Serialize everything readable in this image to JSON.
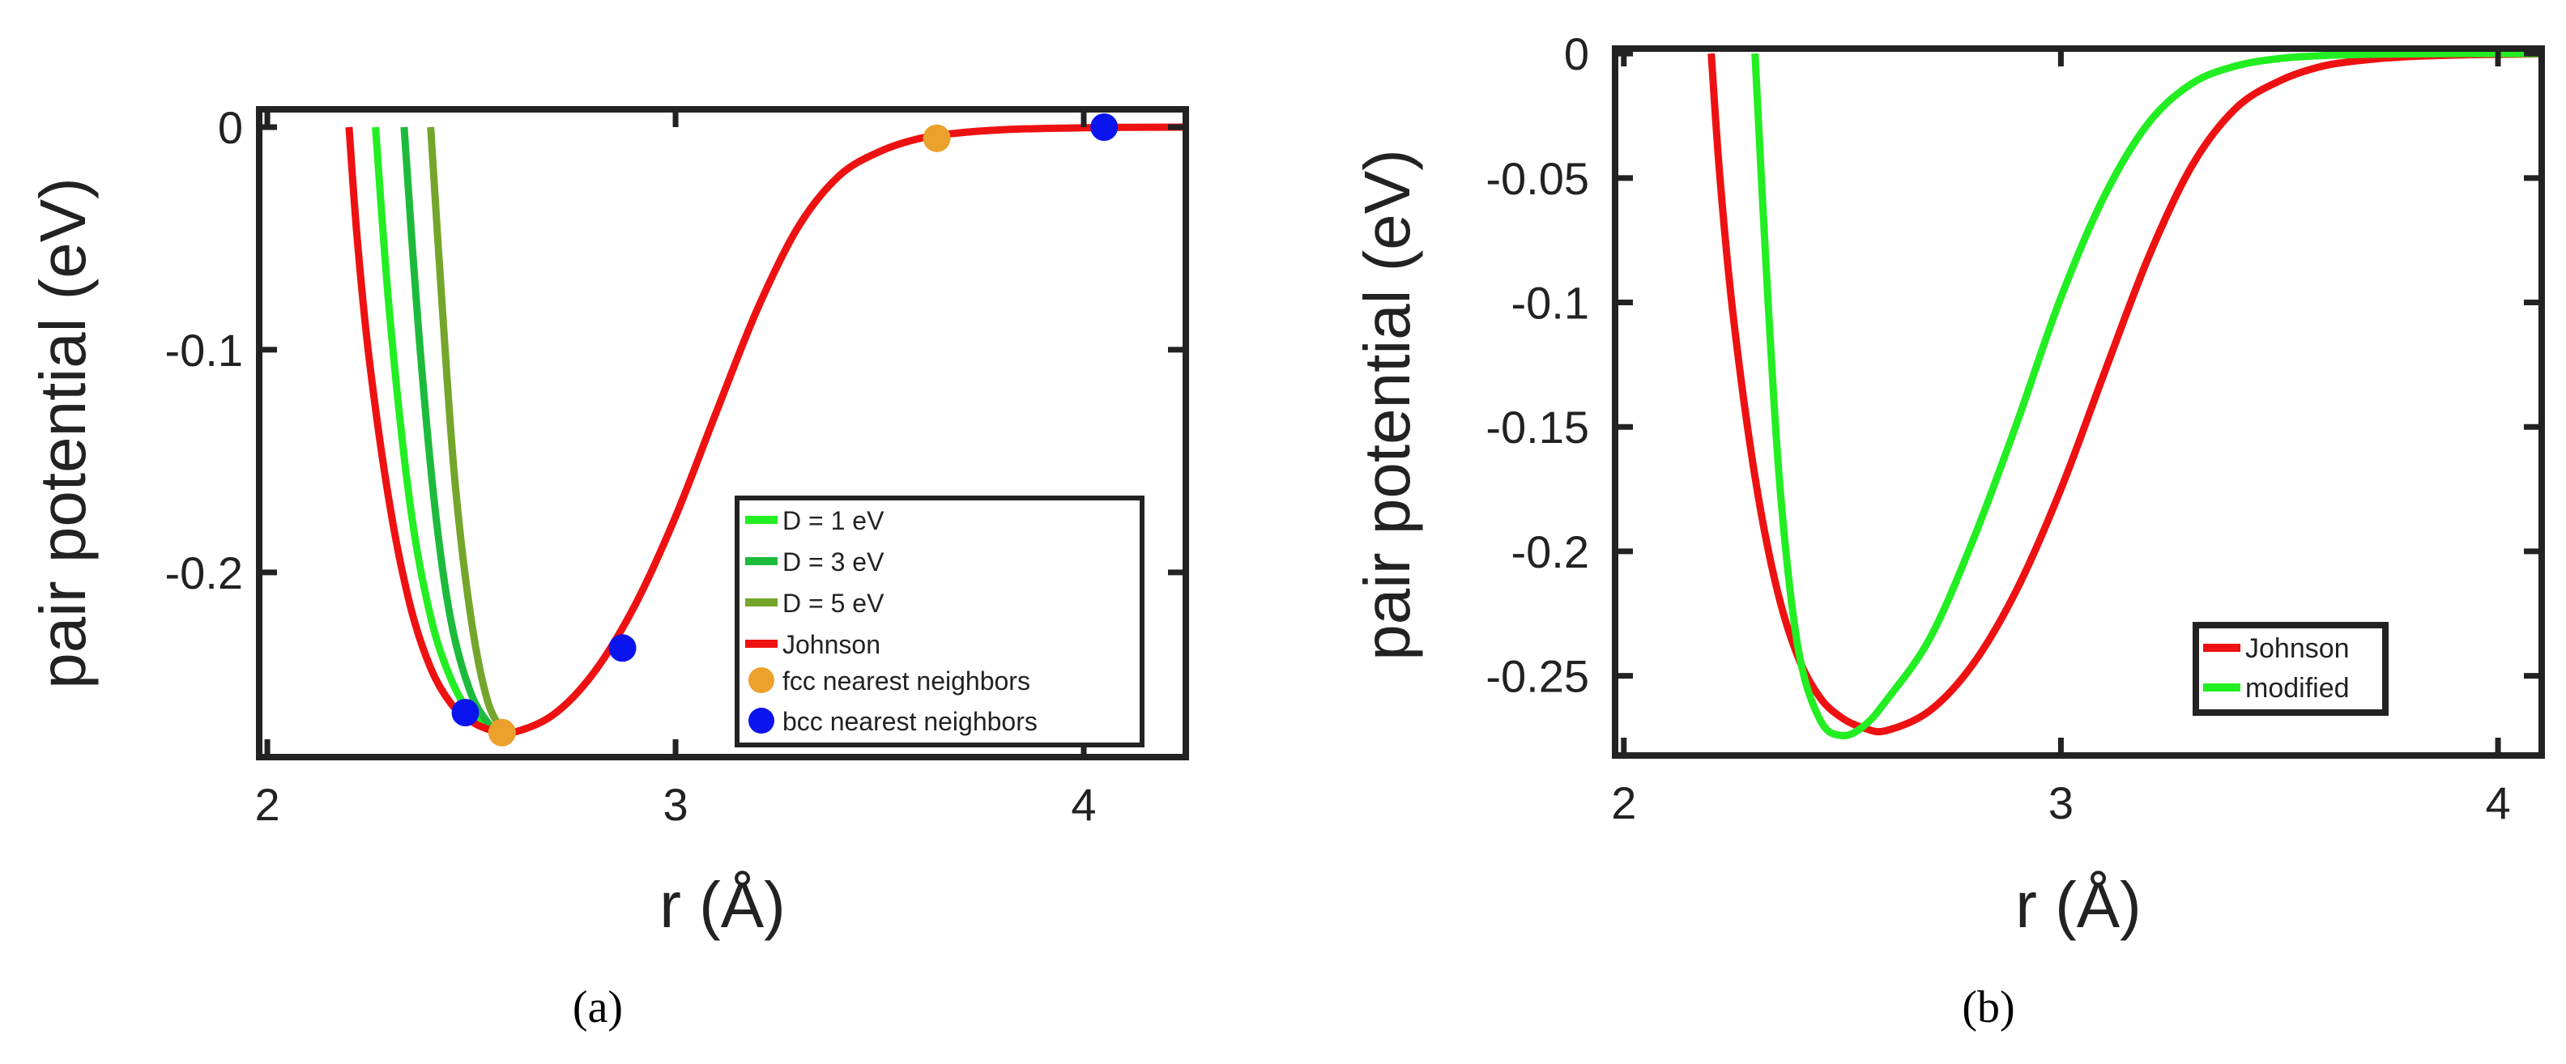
{
  "chart_data": [
    {
      "panel": "a",
      "type": "line",
      "panel_label": "(a)",
      "xlabel": "r (Å)",
      "ylabel": "pair potential (eV)",
      "xlim": [
        1.98,
        4.25
      ],
      "ylim": [
        -0.283,
        0.008
      ],
      "xticks": [
        2,
        3,
        4
      ],
      "xtick_labels": [
        "2",
        "3",
        "4"
      ],
      "yticks": [
        0,
        -0.1,
        -0.2
      ],
      "ytick_labels": [
        "0",
        "-0.1",
        "-0.2"
      ],
      "legend_position": "lower-right",
      "series": [
        {
          "name": "D = 1 eV",
          "color": "#22ee22",
          "r": [
            2.265,
            2.3,
            2.35,
            2.4,
            2.45,
            2.5,
            2.55
          ],
          "y": [
            0.0,
            -0.085,
            -0.17,
            -0.22,
            -0.248,
            -0.264,
            -0.27
          ]
        },
        {
          "name": "D = 3 eV",
          "color": "#1dbb3c",
          "r": [
            2.335,
            2.37,
            2.41,
            2.45,
            2.5,
            2.55
          ],
          "y": [
            0.0,
            -0.09,
            -0.17,
            -0.222,
            -0.255,
            -0.27
          ]
        },
        {
          "name": "D = 5 eV",
          "color": "#74a62c",
          "r": [
            2.4,
            2.43,
            2.46,
            2.5,
            2.54,
            2.58
          ],
          "y": [
            0.0,
            -0.085,
            -0.16,
            -0.222,
            -0.258,
            -0.272
          ]
        },
        {
          "name": "Johnson",
          "color": "#ee1111",
          "r": [
            2.2,
            2.22,
            2.25,
            2.3,
            2.35,
            2.4,
            2.45,
            2.5,
            2.55,
            2.6,
            2.7,
            2.8,
            2.9,
            3.0,
            3.1,
            3.2,
            3.3,
            3.4,
            3.5,
            3.6,
            3.7,
            3.8,
            3.9,
            4.0,
            4.1,
            4.25
          ],
          "y": [
            0.0,
            -0.05,
            -0.105,
            -0.17,
            -0.215,
            -0.243,
            -0.259,
            -0.267,
            -0.271,
            -0.272,
            -0.264,
            -0.245,
            -0.215,
            -0.175,
            -0.128,
            -0.082,
            -0.045,
            -0.022,
            -0.011,
            -0.005,
            -0.0025,
            -0.0012,
            -0.0006,
            -0.0003,
            -0.0001,
            0.0
          ]
        }
      ],
      "markers": [
        {
          "name": "fcc nearest neighbors",
          "color": "#eca12c",
          "points": [
            {
              "r": 2.575,
              "y": -0.272
            },
            {
              "r": 3.64,
              "y": -0.005
            }
          ]
        },
        {
          "name": "bcc nearest neighbors",
          "color": "#0a14ee",
          "points": [
            {
              "r": 2.485,
              "y": -0.263
            },
            {
              "r": 2.87,
              "y": -0.234
            },
            {
              "r": 4.05,
              "y": 0.0
            }
          ]
        }
      ]
    },
    {
      "panel": "b",
      "type": "line",
      "panel_label": "(b)",
      "xlabel": "r (Å)",
      "ylabel": "pair potential (eV)",
      "xlim": [
        1.98,
        4.1
      ],
      "ylim": [
        -0.282,
        0.002
      ],
      "xticks": [
        2,
        3,
        4
      ],
      "xtick_labels": [
        "2",
        "3",
        "4"
      ],
      "yticks": [
        0,
        -0.05,
        -0.1,
        -0.15,
        -0.2,
        -0.25
      ],
      "ytick_labels": [
        "0",
        "-0.05",
        "-0.1",
        "-0.15",
        "-0.2",
        "-0.25"
      ],
      "legend_position": "lower-right",
      "series": [
        {
          "name": "Johnson",
          "color": "#ee1111",
          "r": [
            2.2,
            2.22,
            2.25,
            2.3,
            2.35,
            2.4,
            2.45,
            2.5,
            2.55,
            2.6,
            2.7,
            2.8,
            2.9,
            3.0,
            3.1,
            3.2,
            3.3,
            3.4,
            3.5,
            3.6,
            3.7,
            3.8,
            3.9,
            4.0,
            4.1
          ],
          "y": [
            0.0,
            -0.05,
            -0.105,
            -0.17,
            -0.215,
            -0.243,
            -0.259,
            -0.267,
            -0.271,
            -0.272,
            -0.264,
            -0.245,
            -0.215,
            -0.175,
            -0.128,
            -0.082,
            -0.045,
            -0.022,
            -0.011,
            -0.005,
            -0.0025,
            -0.0012,
            -0.0006,
            -0.0003,
            -0.0001
          ]
        },
        {
          "name": "modified",
          "color": "#22ee22",
          "r": [
            2.3,
            2.33,
            2.36,
            2.4,
            2.45,
            2.5,
            2.55,
            2.6,
            2.7,
            2.8,
            2.9,
            3.0,
            3.1,
            3.2,
            3.3,
            3.4,
            3.5,
            3.6,
            3.7,
            3.8,
            3.9,
            4.0,
            4.1
          ],
          "y": [
            0.0,
            -0.1,
            -0.18,
            -0.24,
            -0.268,
            -0.274,
            -0.27,
            -0.26,
            -0.235,
            -0.195,
            -0.148,
            -0.098,
            -0.057,
            -0.028,
            -0.012,
            -0.005,
            -0.002,
            -0.0008,
            -0.0003,
            -0.0001,
            0.0,
            0.0,
            0.0
          ]
        }
      ],
      "markers": []
    }
  ]
}
